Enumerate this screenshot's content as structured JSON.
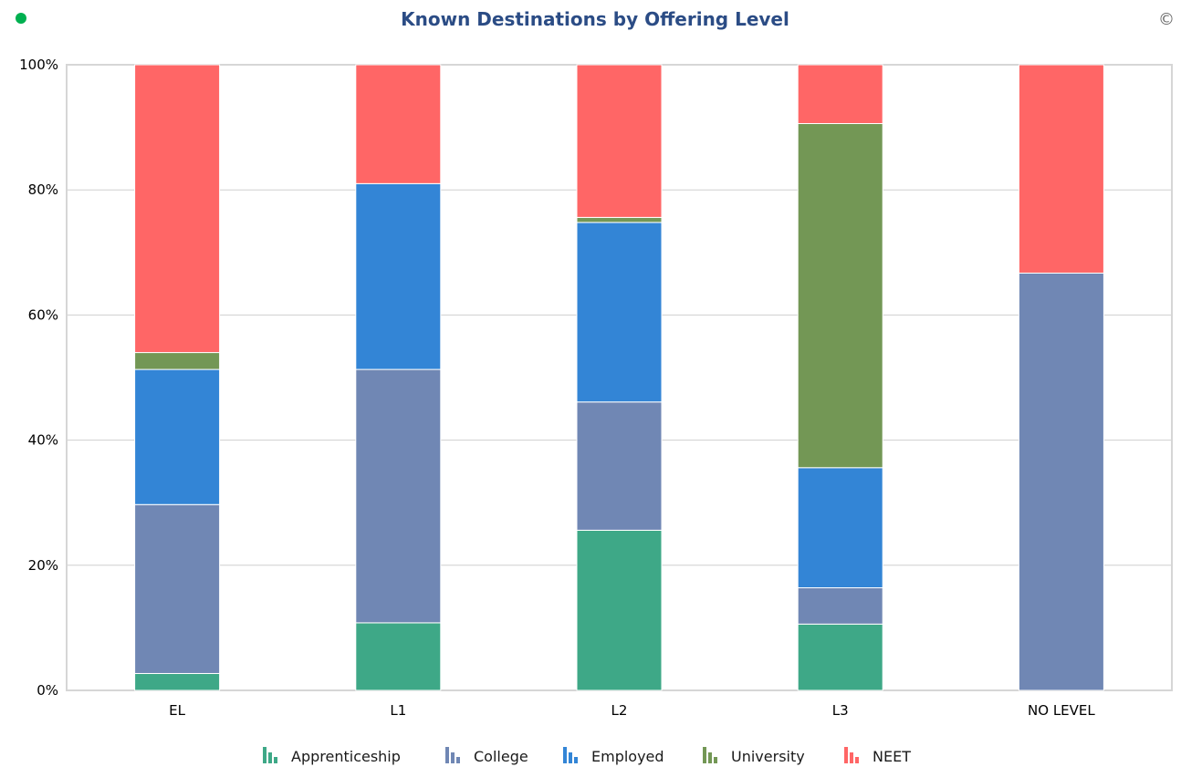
{
  "status_indicator": {
    "color": "#00b050"
  },
  "copyright_symbol": "©",
  "chart_data": {
    "type": "bar",
    "stacked": true,
    "percent": true,
    "title": "Known Destinations by Offering Level",
    "categories": [
      "EL",
      "L1",
      "L2",
      "L3",
      "NO LEVEL"
    ],
    "yticks": [
      "0%",
      "20%",
      "40%",
      "60%",
      "80%",
      "100%"
    ],
    "ylim": [
      0,
      100
    ],
    "grid": true,
    "legend_position": "bottom",
    "series": [
      {
        "name": "Apprenticeship",
        "color": "#3ea887",
        "values": [
          2.7,
          10.8,
          25.6,
          10.6,
          0
        ]
      },
      {
        "name": "College",
        "color": "#7087b4",
        "values": [
          27.0,
          40.5,
          20.5,
          5.8,
          66.7
        ]
      },
      {
        "name": "Employed",
        "color": "#3385d6",
        "values": [
          21.6,
          29.7,
          28.7,
          19.2,
          0
        ]
      },
      {
        "name": "University",
        "color": "#739755",
        "values": [
          2.7,
          0,
          0.8,
          55.0,
          0
        ]
      },
      {
        "name": "NEET",
        "color": "#ff6666",
        "values": [
          46.0,
          19.0,
          24.4,
          9.4,
          33.3
        ]
      }
    ]
  }
}
